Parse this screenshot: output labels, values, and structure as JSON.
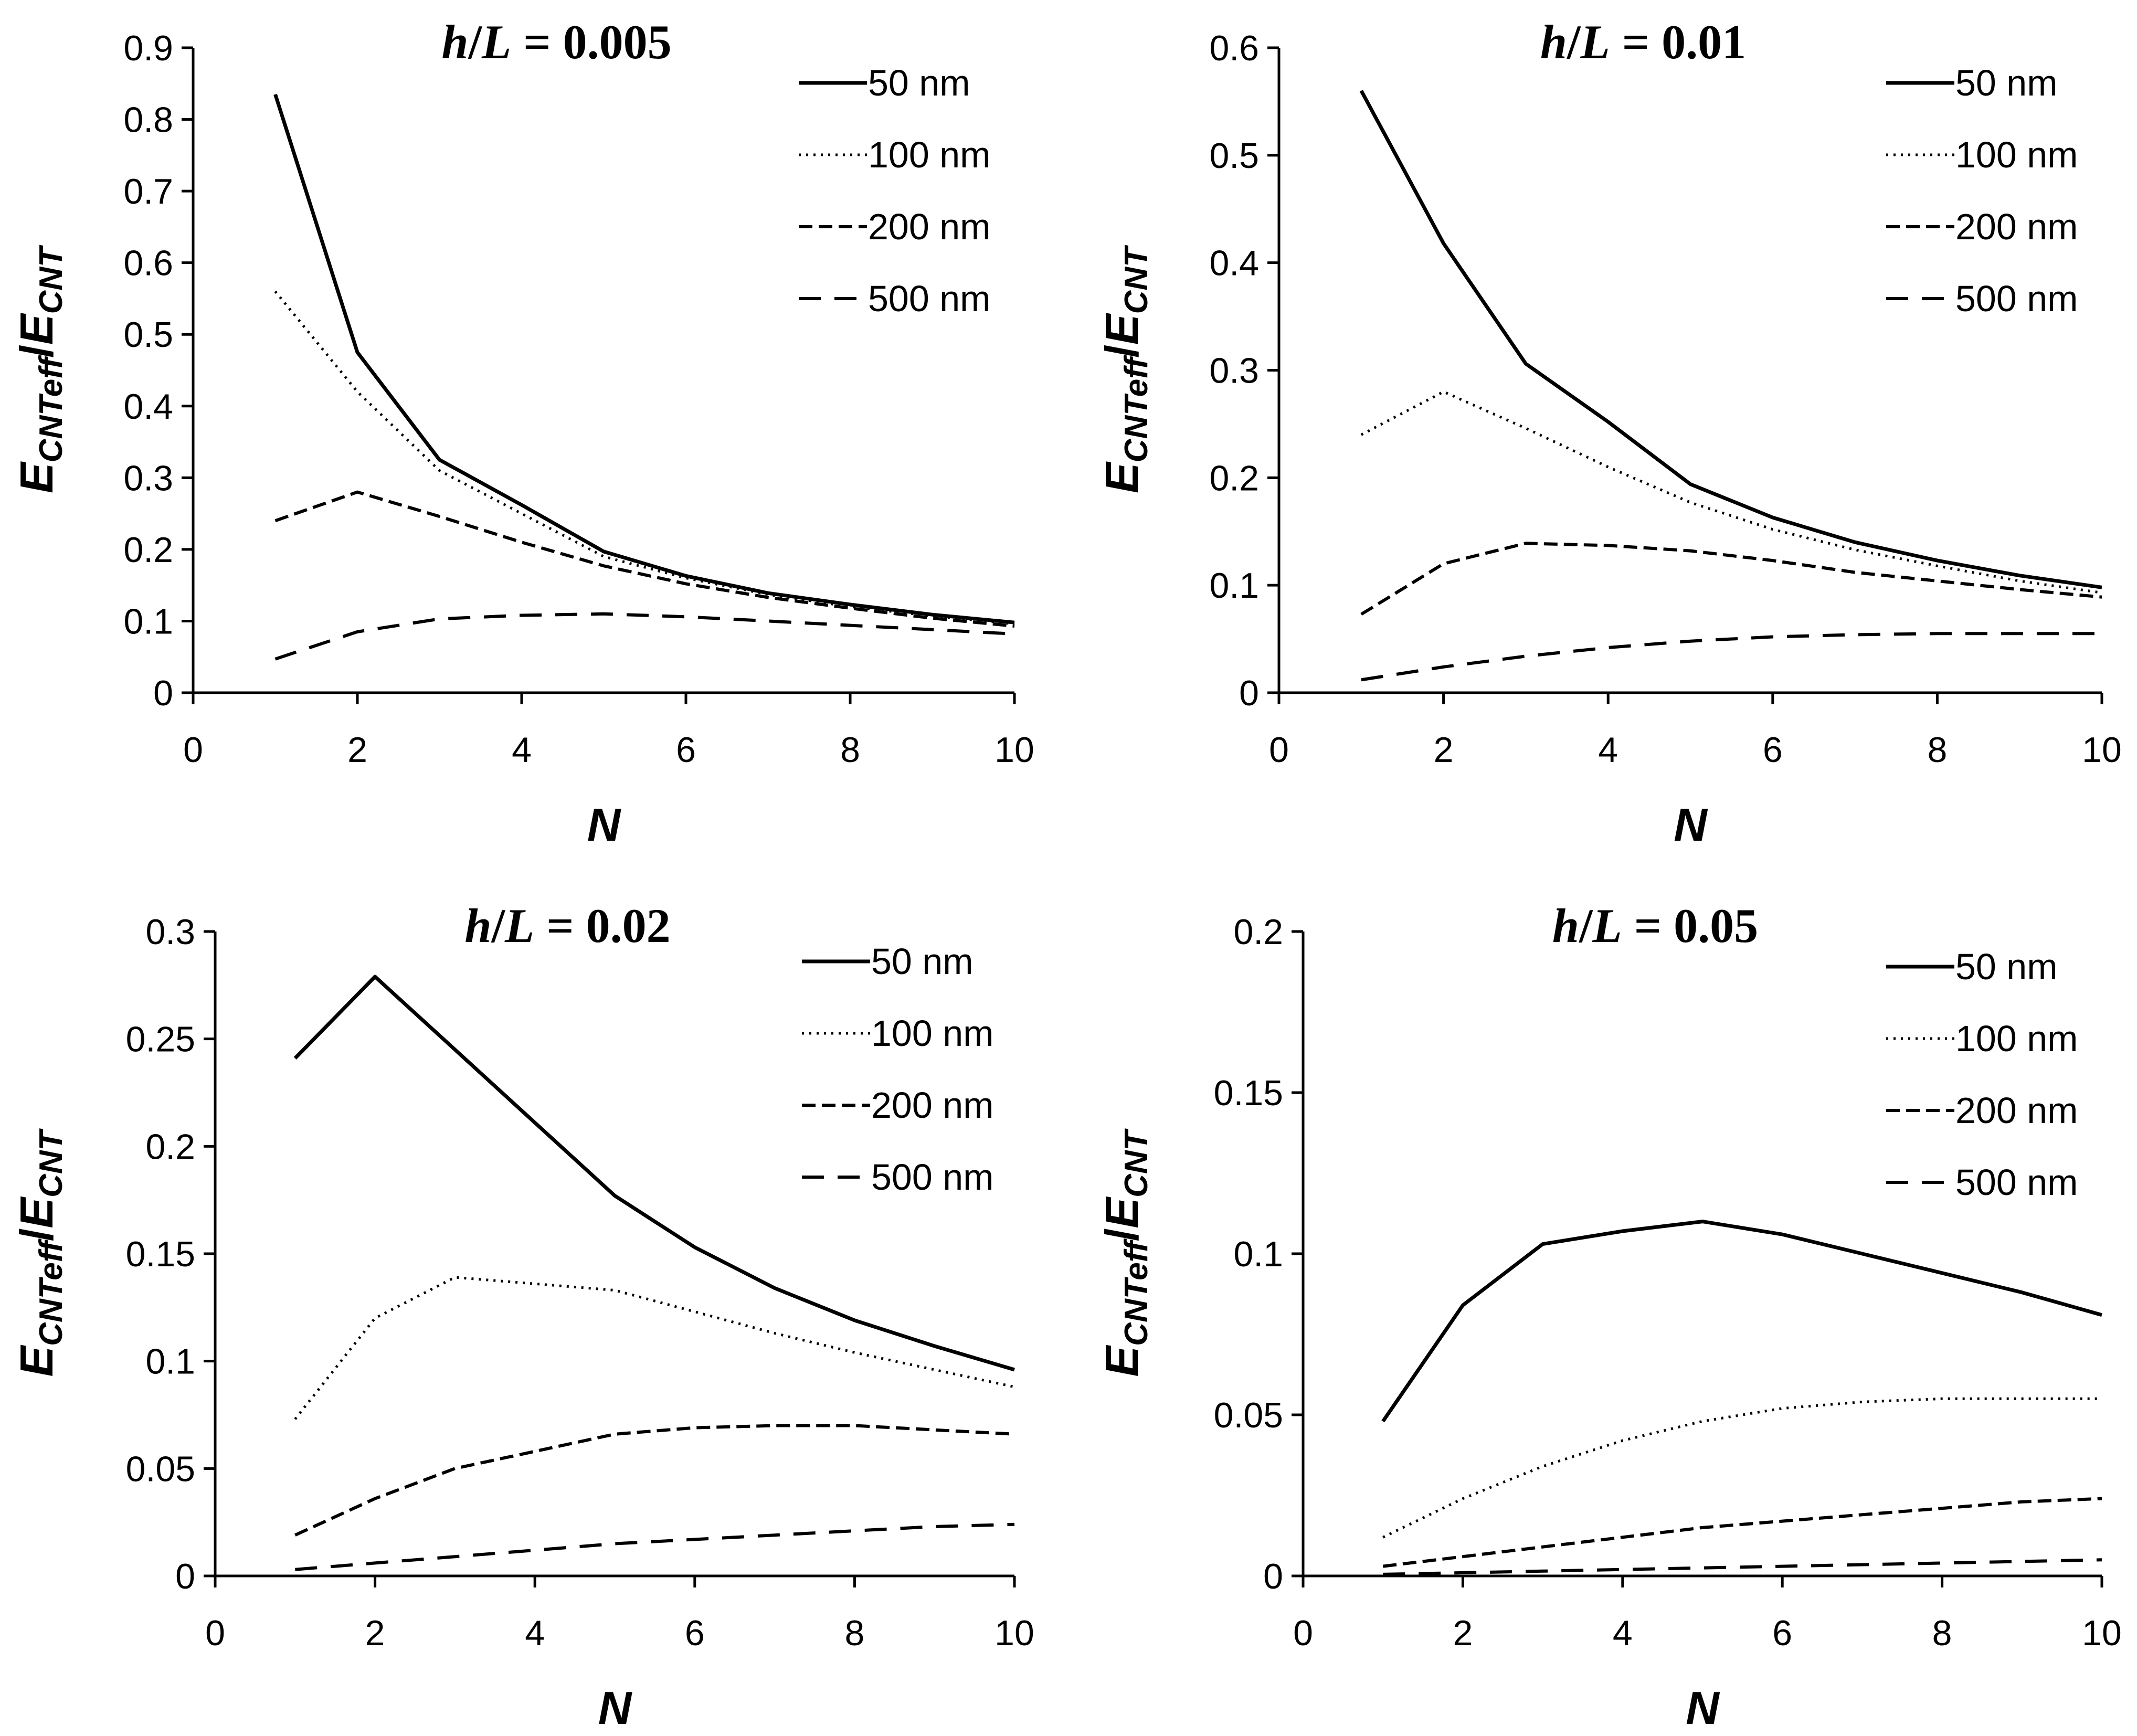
{
  "chart_data": [
    {
      "type": "line",
      "title": "h/L = 0.005",
      "title_parts": {
        "var1": "h",
        "sep": "/",
        "var2": "L",
        "rest": " = 0.005"
      },
      "xlabel": "N",
      "ylabel": {
        "main1": "E",
        "sub1": "CNTeff",
        "slash": "/",
        "main2": "E",
        "sub2": "CNT"
      },
      "xlim": [
        0,
        10
      ],
      "ylim": [
        0,
        0.9
      ],
      "xticks": [
        "0",
        "2",
        "4",
        "6",
        "8",
        "10"
      ],
      "yticks": [
        "0",
        "0.1",
        "0.2",
        "0.3",
        "0.4",
        "0.5",
        "0.6",
        "0.7",
        "0.8",
        "0.9"
      ],
      "grid": false,
      "legend_position": "top-right",
      "series": [
        {
          "name": "50 nm",
          "style": "solid",
          "x": [
            1,
            2,
            3,
            4,
            5,
            6,
            7,
            8,
            9,
            10
          ],
          "values": [
            0.835,
            0.475,
            0.325,
            0.262,
            0.197,
            0.163,
            0.139,
            0.123,
            0.109,
            0.098
          ]
        },
        {
          "name": "100 nm",
          "style": "dotted",
          "x": [
            1,
            2,
            3,
            4,
            5,
            6,
            7,
            8,
            9,
            10
          ],
          "values": [
            0.56,
            0.42,
            0.31,
            0.25,
            0.19,
            0.16,
            0.137,
            0.12,
            0.107,
            0.096
          ]
        },
        {
          "name": "200 nm",
          "style": "dashed",
          "x": [
            1,
            2,
            3,
            4,
            5,
            6,
            7,
            8,
            9,
            10
          ],
          "values": [
            0.24,
            0.28,
            0.246,
            0.21,
            0.177,
            0.152,
            0.133,
            0.118,
            0.104,
            0.093
          ]
        },
        {
          "name": "500 nm",
          "style": "longdash",
          "x": [
            1,
            2,
            3,
            4,
            5,
            6,
            7,
            8,
            9,
            10
          ],
          "values": [
            0.047,
            0.085,
            0.103,
            0.108,
            0.11,
            0.106,
            0.1,
            0.094,
            0.088,
            0.082
          ]
        }
      ]
    },
    {
      "type": "line",
      "title": "h/L = 0.01",
      "title_parts": {
        "var1": "h",
        "sep": "/",
        "var2": "L",
        "rest": " = 0.01"
      },
      "xlabel": "N",
      "ylabel": {
        "main1": "E",
        "sub1": "CNTeff",
        "slash": "/",
        "main2": "E",
        "sub2": "CNT"
      },
      "xlim": [
        0,
        10
      ],
      "ylim": [
        0,
        0.6
      ],
      "xticks": [
        "0",
        "2",
        "4",
        "6",
        "8",
        "10"
      ],
      "yticks": [
        "0",
        "0.1",
        "0.2",
        "0.3",
        "0.4",
        "0.5",
        "0.6"
      ],
      "grid": false,
      "legend_position": "top-right",
      "series": [
        {
          "name": "50 nm",
          "style": "solid",
          "x": [
            1,
            2,
            3,
            4,
            5,
            6,
            7,
            8,
            9,
            10
          ],
          "values": [
            0.56,
            0.418,
            0.306,
            0.252,
            0.194,
            0.163,
            0.14,
            0.123,
            0.109,
            0.098
          ]
        },
        {
          "name": "100 nm",
          "style": "dotted",
          "x": [
            1,
            2,
            3,
            4,
            5,
            6,
            7,
            8,
            9,
            10
          ],
          "values": [
            0.24,
            0.28,
            0.246,
            0.21,
            0.177,
            0.152,
            0.133,
            0.118,
            0.104,
            0.093
          ]
        },
        {
          "name": "200 nm",
          "style": "dashed",
          "x": [
            1,
            2,
            3,
            4,
            5,
            6,
            7,
            8,
            9,
            10
          ],
          "values": [
            0.073,
            0.12,
            0.139,
            0.137,
            0.132,
            0.123,
            0.112,
            0.104,
            0.096,
            0.089
          ]
        },
        {
          "name": "500 nm",
          "style": "longdash",
          "x": [
            1,
            2,
            3,
            4,
            5,
            6,
            7,
            8,
            9,
            10
          ],
          "values": [
            0.012,
            0.024,
            0.034,
            0.042,
            0.048,
            0.052,
            0.054,
            0.055,
            0.055,
            0.055
          ]
        }
      ]
    },
    {
      "type": "line",
      "title": "h/L = 0.02",
      "title_parts": {
        "var1": "h",
        "sep": "/",
        "var2": "L",
        "rest": " = 0.02"
      },
      "xlabel": "N",
      "ylabel": {
        "main1": "E",
        "sub1": "CNTeff",
        "slash": "/",
        "main2": "E",
        "sub2": "CNT"
      },
      "xlim": [
        0,
        10
      ],
      "ylim": [
        0,
        0.3
      ],
      "xticks": [
        "0",
        "2",
        "4",
        "6",
        "8",
        "10"
      ],
      "yticks": [
        "0",
        "0.05",
        "0.1",
        "0.15",
        "0.2",
        "0.25",
        "0.3"
      ],
      "grid": false,
      "legend_position": "top-right",
      "series": [
        {
          "name": "50 nm",
          "style": "solid",
          "x": [
            1,
            2,
            3,
            4,
            5,
            6,
            7,
            8,
            9,
            10
          ],
          "values": [
            0.241,
            0.279,
            0.245,
            0.211,
            0.177,
            0.153,
            0.134,
            0.119,
            0.107,
            0.096
          ]
        },
        {
          "name": "100 nm",
          "style": "dotted",
          "x": [
            1,
            2,
            3,
            4,
            5,
            6,
            7,
            8,
            9,
            10
          ],
          "values": [
            0.073,
            0.12,
            0.139,
            0.136,
            0.133,
            0.123,
            0.113,
            0.104,
            0.096,
            0.088
          ]
        },
        {
          "name": "200 nm",
          "style": "dashed",
          "x": [
            1,
            2,
            3,
            4,
            5,
            6,
            7,
            8,
            9,
            10
          ],
          "values": [
            0.019,
            0.036,
            0.05,
            0.058,
            0.066,
            0.069,
            0.07,
            0.07,
            0.068,
            0.066
          ]
        },
        {
          "name": "500 nm",
          "style": "longdash",
          "x": [
            1,
            2,
            3,
            4,
            5,
            6,
            7,
            8,
            9,
            10
          ],
          "values": [
            0.003,
            0.006,
            0.009,
            0.012,
            0.015,
            0.017,
            0.019,
            0.021,
            0.023,
            0.024
          ]
        }
      ]
    },
    {
      "type": "line",
      "title": "h/L = 0.05",
      "title_parts": {
        "var1": "h",
        "sep": "/",
        "var2": "L",
        "rest": " = 0.05"
      },
      "xlabel": "N",
      "ylabel": {
        "main1": "E",
        "sub1": "CNTeff",
        "slash": "/",
        "main2": "E",
        "sub2": "CNT"
      },
      "xlim": [
        0,
        10
      ],
      "ylim": [
        0,
        0.2
      ],
      "xticks": [
        "0",
        "2",
        "4",
        "6",
        "8",
        "10"
      ],
      "yticks": [
        "0",
        "0.05",
        "0.1",
        "0.15",
        "0.2"
      ],
      "grid": false,
      "legend_position": "top-right",
      "series": [
        {
          "name": "50 nm",
          "style": "solid",
          "x": [
            1,
            2,
            3,
            4,
            5,
            6,
            7,
            8,
            9,
            10
          ],
          "values": [
            0.048,
            0.084,
            0.103,
            0.107,
            0.11,
            0.106,
            0.1,
            0.094,
            0.088,
            0.081
          ]
        },
        {
          "name": "100 nm",
          "style": "dotted",
          "x": [
            1,
            2,
            3,
            4,
            5,
            6,
            7,
            8,
            9,
            10
          ],
          "values": [
            0.012,
            0.024,
            0.034,
            0.042,
            0.048,
            0.052,
            0.054,
            0.055,
            0.055,
            0.055
          ]
        },
        {
          "name": "200 nm",
          "style": "dashed",
          "x": [
            1,
            2,
            3,
            4,
            5,
            6,
            7,
            8,
            9,
            10
          ],
          "values": [
            0.003,
            0.006,
            0.009,
            0.012,
            0.015,
            0.017,
            0.019,
            0.021,
            0.023,
            0.024
          ]
        },
        {
          "name": "500 nm",
          "style": "longdash",
          "x": [
            1,
            2,
            3,
            4,
            5,
            6,
            7,
            8,
            9,
            10
          ],
          "values": [
            0.0005,
            0.001,
            0.0015,
            0.002,
            0.0025,
            0.003,
            0.0035,
            0.004,
            0.0045,
            0.005
          ]
        }
      ]
    }
  ]
}
